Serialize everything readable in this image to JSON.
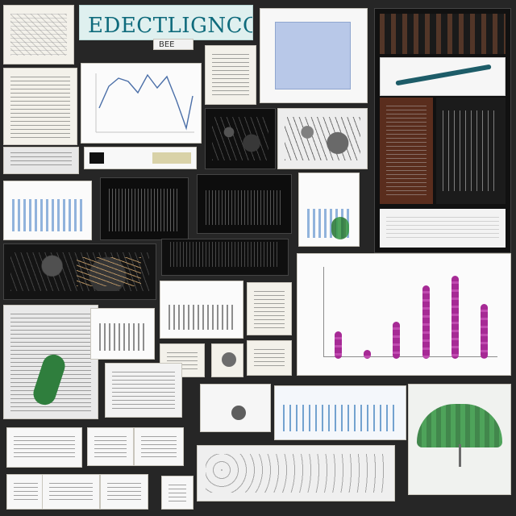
{
  "header": {
    "title": "EDECTLIGNCC",
    "subtitle": "BEE"
  },
  "chart_data": {
    "type": "bar",
    "categories": [
      "",
      "",
      "",
      "",
      "",
      ""
    ],
    "values": [
      3,
      1,
      4,
      8,
      9,
      6
    ],
    "title": "",
    "xlabel": "",
    "ylabel": "",
    "ylim": [
      0,
      10
    ],
    "colors": {
      "bar": "#a62a95",
      "axis": "#8c8c8c"
    }
  }
}
